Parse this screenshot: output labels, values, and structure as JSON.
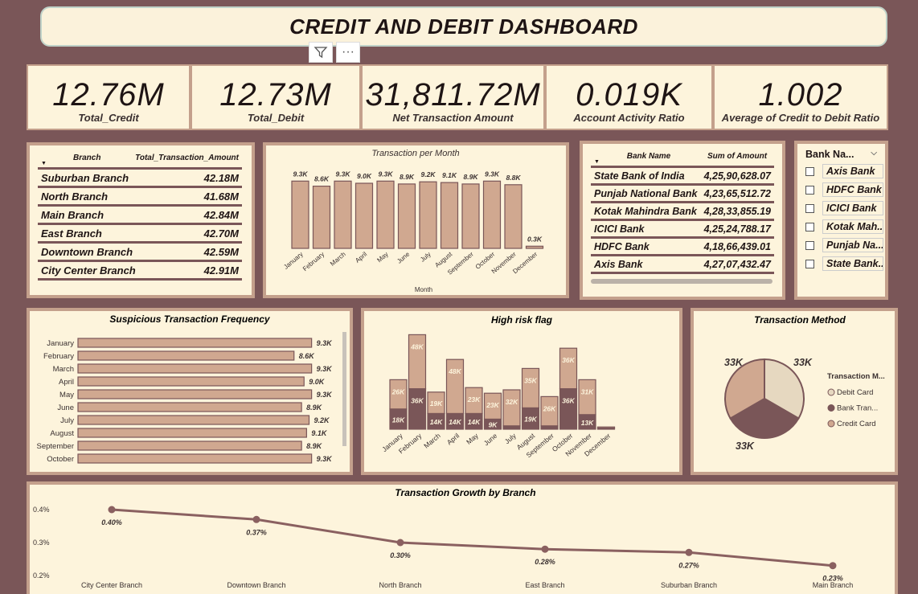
{
  "title": "CREDIT AND DEBIT DASHBOARD",
  "toolbar": {
    "filter_icon": "filter-icon",
    "more_label": "···"
  },
  "kpis": [
    {
      "value": "12.76M",
      "label": "Total_Credit"
    },
    {
      "value": "12.73M",
      "label": "Total_Debit"
    },
    {
      "value": "31,811.72M",
      "label": "Net Transaction Amount"
    },
    {
      "value": "0.019K",
      "label": "Account Activity Ratio"
    },
    {
      "value": "1.002",
      "label": "Average of Credit to Debit Ratio"
    }
  ],
  "branch_table": {
    "headers": [
      "Branch",
      "Total_Transaction_Amount"
    ],
    "rows": [
      [
        "Suburban Branch",
        "42.18M"
      ],
      [
        "North Branch",
        "41.68M"
      ],
      [
        "Main Branch",
        "42.84M"
      ],
      [
        "East Branch",
        "42.70M"
      ],
      [
        "Downtown Branch",
        "42.59M"
      ],
      [
        "City Center Branch",
        "42.91M"
      ]
    ]
  },
  "bank_table": {
    "headers": [
      "Bank Name",
      "Sum of Amount"
    ],
    "rows": [
      [
        "State Bank of India",
        "4,25,90,628.07"
      ],
      [
        "Punjab National Bank",
        "4,23,65,512.72"
      ],
      [
        "Kotak Mahindra Bank",
        "4,28,33,855.19"
      ],
      [
        "ICICI Bank",
        "4,25,24,788.17"
      ],
      [
        "HDFC Bank",
        "4,18,66,439.01"
      ],
      [
        "Axis Bank",
        "4,27,07,432.47"
      ]
    ]
  },
  "slicer": {
    "title": "Bank Na...",
    "items": [
      "Axis Bank",
      "HDFC Bank",
      "ICICI Bank",
      "Kotak Mah...",
      "Punjab Na...",
      "State Bank..."
    ]
  },
  "chart_data": [
    {
      "type": "bar",
      "title": "Transaction per Month",
      "xlabel": "Month",
      "categories": [
        "January",
        "February",
        "March",
        "April",
        "May",
        "June",
        "July",
        "August",
        "September",
        "October",
        "November",
        "December"
      ],
      "values": [
        9.3,
        8.6,
        9.3,
        9.0,
        9.3,
        8.9,
        9.2,
        9.1,
        8.9,
        9.3,
        8.8,
        0.3
      ],
      "labels": [
        "9.3K",
        "8.6K",
        "9.3K",
        "9.0K",
        "9.3K",
        "8.9K",
        "9.2K",
        "9.1K",
        "8.9K",
        "9.3K",
        "8.8K",
        "0.3K"
      ],
      "color": "#d0a890"
    },
    {
      "type": "bar",
      "title": "Suspicious Transaction Frequency",
      "orientation": "horizontal",
      "categories": [
        "January",
        "February",
        "March",
        "April",
        "May",
        "June",
        "July",
        "August",
        "September",
        "October"
      ],
      "values": [
        9.3,
        8.6,
        9.3,
        9.0,
        9.3,
        8.9,
        9.2,
        9.1,
        8.9,
        9.3
      ],
      "labels": [
        "9.3K",
        "8.6K",
        "9.3K",
        "9.0K",
        "9.3K",
        "8.9K",
        "9.2K",
        "9.1K",
        "8.9K",
        "9.3K"
      ],
      "color": "#d0a890"
    },
    {
      "type": "bar",
      "stacked": true,
      "title": "High risk flag",
      "categories": [
        "January",
        "February",
        "March",
        "April",
        "May",
        "June",
        "July",
        "August",
        "September",
        "October",
        "November",
        "December"
      ],
      "series": [
        {
          "values": [
            18,
            36,
            14,
            14,
            14,
            9,
            3,
            19,
            3,
            36,
            13,
            1
          ],
          "labels": [
            "18K",
            "36K",
            "14K",
            "14K",
            "14K",
            "9K",
            "",
            "19K",
            "",
            "36K",
            "13K",
            ""
          ],
          "color": "#7a5658"
        },
        {
          "values": [
            26,
            48,
            19,
            48,
            23,
            23,
            32,
            35,
            26,
            36,
            31,
            1
          ],
          "labels": [
            "26K",
            "48K",
            "19K",
            "48K",
            "23K",
            "23K",
            "32K",
            "35K",
            "26K",
            "36K",
            "31K",
            ""
          ],
          "color": "#d0a890"
        }
      ]
    },
    {
      "type": "pie",
      "title": "Transaction Method",
      "legend_title": "Transaction M...",
      "slices": [
        {
          "name": "Debit Card",
          "value": 33,
          "label": "33K",
          "color": "#e6d8c0"
        },
        {
          "name": "Bank Tran...",
          "value": 33,
          "label": "33K",
          "color": "#7a5658"
        },
        {
          "name": "Credit Card",
          "value": 33,
          "label": "33K",
          "color": "#d0a890"
        }
      ]
    },
    {
      "type": "line",
      "title": "Transaction Growth by Branch",
      "categories": [
        "City Center Branch",
        "Downtown Branch",
        "North Branch",
        "East Branch",
        "Suburban Branch",
        "Main Branch"
      ],
      "values": [
        0.4,
        0.37,
        0.3,
        0.28,
        0.27,
        0.23
      ],
      "labels": [
        "0.40%",
        "0.37%",
        "0.30%",
        "0.28%",
        "0.27%",
        "0.23%"
      ],
      "yticks": [
        "0.4%",
        "0.3%",
        "0.2%"
      ],
      "ylim": [
        0.2,
        0.4
      ],
      "color": "#8a6060"
    }
  ]
}
